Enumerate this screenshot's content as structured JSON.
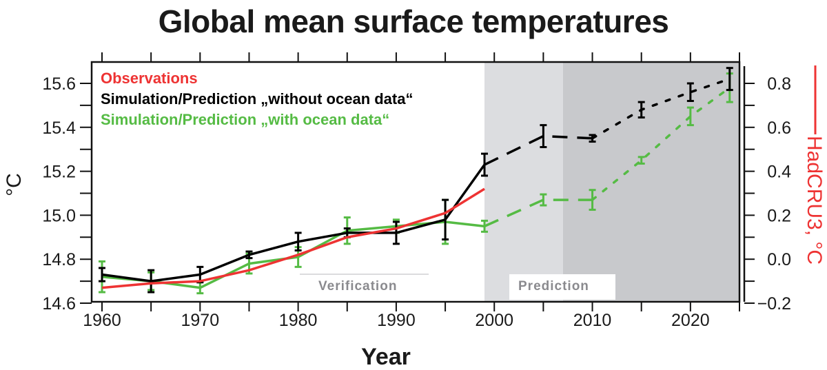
{
  "chart_data": {
    "type": "line",
    "title": "Global mean surface temperatures",
    "xlabel": "Year",
    "ylabel": "°C",
    "ylabel_right": "HadCRU3, °C",
    "xlim": [
      1959,
      2025
    ],
    "ylim": [
      14.6,
      15.7
    ],
    "ylim_right": [
      -0.2,
      0.9
    ],
    "x_ticks": [
      1960,
      1970,
      1980,
      1990,
      2000,
      2010,
      2020
    ],
    "y_ticks": [
      14.6,
      14.8,
      15.0,
      15.2,
      15.4,
      15.6
    ],
    "y_ticks_right": [
      -0.2,
      0.0,
      0.2,
      0.4,
      0.6,
      0.8
    ],
    "y_tick_labels": [
      "14.6",
      "14.8",
      "15.0",
      "15.2",
      "15.4",
      "15.6"
    ],
    "y_tick_labels_right": [
      "−0.2",
      "0.0",
      "0.2",
      "0.4",
      "0.6",
      "0.8"
    ],
    "grid": false,
    "legend_position": "top-left",
    "regions": [
      {
        "label": "Verification",
        "x": [
          1959,
          1999
        ],
        "color": "#ffffff"
      },
      {
        "label": "Prediction",
        "x": [
          1999,
          2007
        ],
        "color": "#dcdde0"
      },
      {
        "label": "",
        "x": [
          2007,
          2025
        ],
        "color": "#c8c9cc"
      }
    ],
    "series": [
      {
        "name": "Observations",
        "color": "#ee3333",
        "style": "solid",
        "x": [
          1960,
          1965,
          1970,
          1975,
          1980,
          1985,
          1990,
          1995,
          1999
        ],
        "y": [
          14.67,
          14.69,
          14.7,
          14.75,
          14.82,
          14.9,
          14.94,
          15.01,
          15.12
        ]
      },
      {
        "name": "Simulation/Prediction „without ocean data“",
        "color": "#000000",
        "x": [
          1960,
          1965,
          1970,
          1975,
          1980,
          1985,
          1990,
          1995,
          1999,
          2005,
          2010,
          2015,
          2020,
          2024
        ],
        "y": [
          14.73,
          14.7,
          14.73,
          14.82,
          14.88,
          14.92,
          14.92,
          14.98,
          15.23,
          15.36,
          15.35,
          15.48,
          15.56,
          15.62
        ],
        "err": [
          0.03,
          0.05,
          0.035,
          0.015,
          0.04,
          0.02,
          0.05,
          0.09,
          0.05,
          0.05,
          0.015,
          0.035,
          0.04,
          0.05
        ],
        "segments": [
          {
            "style": "solid",
            "from": 1960,
            "to": 1999
          },
          {
            "style": "dashed",
            "from": 1999,
            "to": 2010
          },
          {
            "style": "dotted",
            "from": 2010,
            "to": 2024
          }
        ]
      },
      {
        "name": "Simulation/Prediction „with ocean data“",
        "color": "#55bb44",
        "x": [
          1960,
          1965,
          1970,
          1975,
          1980,
          1985,
          1990,
          1995,
          1999,
          2005,
          2010,
          2015,
          2020,
          2024
        ],
        "y": [
          14.72,
          14.7,
          14.67,
          14.78,
          14.81,
          14.93,
          14.95,
          14.97,
          14.95,
          15.07,
          15.07,
          15.25,
          15.45,
          15.58
        ],
        "err": [
          0.07,
          0.04,
          0.025,
          0.045,
          0.045,
          0.06,
          0.03,
          0.1,
          0.025,
          0.025,
          0.045,
          0.015,
          0.04,
          0.065
        ],
        "segments": [
          {
            "style": "solid",
            "from": 1960,
            "to": 1999
          },
          {
            "style": "dashed",
            "from": 1999,
            "to": 2010
          },
          {
            "style": "dotted",
            "from": 2010,
            "to": 2024
          }
        ]
      }
    ]
  },
  "legend": [
    {
      "label": "Observations",
      "color": "#ee3333"
    },
    {
      "label": "Simulation/Prediction „without ocean data“",
      "color": "#000000"
    },
    {
      "label": "Simulation/Prediction „with ocean data“",
      "color": "#55bb44"
    }
  ],
  "labels": {
    "verification": "Verification",
    "prediction": "Prediction"
  }
}
